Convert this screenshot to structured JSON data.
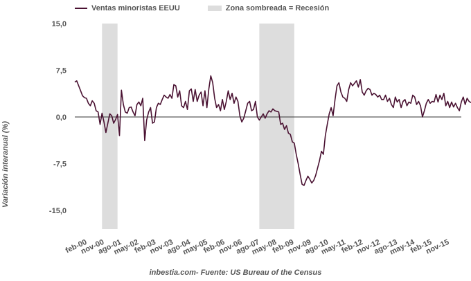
{
  "chart_data": {
    "type": "line",
    "title": "",
    "xlabel": "",
    "ylabel": "Variación interanual (%)",
    "ylim": [
      -18,
      15
    ],
    "yticks": [
      {
        "value": 15,
        "label": "15,0"
      },
      {
        "value": 7.5,
        "label": "7,5"
      },
      {
        "value": 0,
        "label": "0,0"
      },
      {
        "value": -7.5,
        "label": "-7,5"
      },
      {
        "value": -15,
        "label": "-15,0"
      }
    ],
    "xrange": [
      "2000-01",
      "2016-08"
    ],
    "xticks": [
      "feb-00",
      "nov-00",
      "ago-01",
      "may-02",
      "feb-03",
      "nov-03",
      "ago-04",
      "may-05",
      "feb-06",
      "nov-06",
      "ago-07",
      "may-08",
      "feb-09",
      "nov-09",
      "ago-10",
      "may-11",
      "feb-12",
      "nov-12",
      "ago-13",
      "may-14",
      "feb-15",
      "nov-15"
    ],
    "recessions": [
      {
        "start": "2001-03",
        "end": "2001-11"
      },
      {
        "start": "2007-12",
        "end": "2009-06"
      }
    ],
    "series": [
      {
        "name": "Ventas minoristas EEUU",
        "color": "#4a1232",
        "points": [
          [
            "2000-01",
            5.6
          ],
          [
            "2000-02",
            5.8
          ],
          [
            "2000-03",
            5.0
          ],
          [
            "2000-04",
            4.2
          ],
          [
            "2000-05",
            3.4
          ],
          [
            "2000-06",
            3.1
          ],
          [
            "2000-07",
            3.0
          ],
          [
            "2000-08",
            2.2
          ],
          [
            "2000-09",
            1.8
          ],
          [
            "2000-10",
            2.6
          ],
          [
            "2000-11",
            2.2
          ],
          [
            "2000-12",
            1.0
          ],
          [
            "2001-01",
            0.8
          ],
          [
            "2001-02",
            -1.2
          ],
          [
            "2001-03",
            0.6
          ],
          [
            "2001-04",
            -0.8
          ],
          [
            "2001-05",
            -2.5
          ],
          [
            "2001-06",
            -1.0
          ],
          [
            "2001-07",
            0.5
          ],
          [
            "2001-08",
            0.2
          ],
          [
            "2001-09",
            -1.0
          ],
          [
            "2001-10",
            -0.4
          ],
          [
            "2001-11",
            0.4
          ],
          [
            "2001-12",
            -3.0
          ],
          [
            "2002-01",
            4.3
          ],
          [
            "2002-02",
            2.0
          ],
          [
            "2002-03",
            0.8
          ],
          [
            "2002-04",
            0.6
          ],
          [
            "2002-05",
            1.5
          ],
          [
            "2002-06",
            1.6
          ],
          [
            "2002-07",
            0.8
          ],
          [
            "2002-08",
            0.2
          ],
          [
            "2002-09",
            2.0
          ],
          [
            "2002-10",
            2.4
          ],
          [
            "2002-11",
            1.8
          ],
          [
            "2002-12",
            3.0
          ],
          [
            "2003-01",
            -3.8
          ],
          [
            "2003-02",
            -0.5
          ],
          [
            "2003-03",
            0.8
          ],
          [
            "2003-04",
            1.5
          ],
          [
            "2003-05",
            -1.0
          ],
          [
            "2003-06",
            -0.8
          ],
          [
            "2003-07",
            1.5
          ],
          [
            "2003-08",
            2.2
          ],
          [
            "2003-09",
            2.0
          ],
          [
            "2003-10",
            2.8
          ],
          [
            "2003-11",
            3.5
          ],
          [
            "2003-12",
            3.2
          ],
          [
            "2004-01",
            3.0
          ],
          [
            "2004-02",
            3.6
          ],
          [
            "2004-03",
            3.0
          ],
          [
            "2004-04",
            5.2
          ],
          [
            "2004-05",
            5.0
          ],
          [
            "2004-06",
            3.2
          ],
          [
            "2004-07",
            4.2
          ],
          [
            "2004-08",
            1.8
          ],
          [
            "2004-09",
            1.5
          ],
          [
            "2004-10",
            2.5
          ],
          [
            "2004-11",
            1.2
          ],
          [
            "2004-12",
            4.2
          ],
          [
            "2005-01",
            4.5
          ],
          [
            "2005-02",
            2.5
          ],
          [
            "2005-03",
            4.4
          ],
          [
            "2005-04",
            2.5
          ],
          [
            "2005-05",
            3.5
          ],
          [
            "2005-06",
            4.0
          ],
          [
            "2005-07",
            1.8
          ],
          [
            "2005-08",
            4.2
          ],
          [
            "2005-09",
            1.5
          ],
          [
            "2005-10",
            4.5
          ],
          [
            "2005-11",
            6.6
          ],
          [
            "2005-12",
            5.5
          ],
          [
            "2006-01",
            3.0
          ],
          [
            "2006-02",
            1.5
          ],
          [
            "2006-03",
            2.0
          ],
          [
            "2006-04",
            1.0
          ],
          [
            "2006-05",
            2.8
          ],
          [
            "2006-06",
            1.2
          ],
          [
            "2006-07",
            2.5
          ],
          [
            "2006-08",
            4.2
          ],
          [
            "2006-09",
            2.8
          ],
          [
            "2006-10",
            3.8
          ],
          [
            "2006-11",
            2.2
          ],
          [
            "2006-12",
            3.2
          ],
          [
            "2007-01",
            2.5
          ],
          [
            "2007-02",
            0.2
          ],
          [
            "2007-03",
            -0.8
          ],
          [
            "2007-04",
            -0.2
          ],
          [
            "2007-05",
            1.0
          ],
          [
            "2007-06",
            2.2
          ],
          [
            "2007-07",
            2.5
          ],
          [
            "2007-08",
            1.0
          ],
          [
            "2007-09",
            1.2
          ],
          [
            "2007-10",
            2.5
          ],
          [
            "2007-11",
            0.0
          ],
          [
            "2007-12",
            -0.5
          ],
          [
            "2008-01",
            0.0
          ],
          [
            "2008-02",
            0.5
          ],
          [
            "2008-03",
            -0.2
          ],
          [
            "2008-04",
            0.5
          ],
          [
            "2008-05",
            1.0
          ],
          [
            "2008-06",
            0.8
          ],
          [
            "2008-07",
            1.3
          ],
          [
            "2008-08",
            1.0
          ],
          [
            "2008-09",
            0.9
          ],
          [
            "2008-10",
            0.8
          ],
          [
            "2008-11",
            -1.2
          ],
          [
            "2008-12",
            -1.0
          ],
          [
            "2009-01",
            -2.0
          ],
          [
            "2009-02",
            -1.4
          ],
          [
            "2009-03",
            -2.6
          ],
          [
            "2009-04",
            -2.8
          ],
          [
            "2009-05",
            -4.0
          ],
          [
            "2009-06",
            -4.2
          ],
          [
            "2009-07",
            -6.0
          ],
          [
            "2009-08",
            -7.5
          ],
          [
            "2009-09",
            -9.2
          ],
          [
            "2009-10",
            -10.8
          ],
          [
            "2009-11",
            -11.0
          ],
          [
            "2009-12",
            -10.2
          ],
          [
            "2010-01",
            -9.5
          ],
          [
            "2010-02",
            -10.0
          ],
          [
            "2010-03",
            -10.6
          ],
          [
            "2010-04",
            -10.2
          ],
          [
            "2010-05",
            -9.4
          ],
          [
            "2010-06",
            -8.2
          ],
          [
            "2010-07",
            -7.0
          ],
          [
            "2010-08",
            -5.5
          ],
          [
            "2010-09",
            -6.0
          ],
          [
            "2010-10",
            -3.0
          ],
          [
            "2010-11",
            -1.2
          ],
          [
            "2010-12",
            0.5
          ],
          [
            "2011-01",
            1.5
          ],
          [
            "2011-02",
            0.2
          ],
          [
            "2011-03",
            2.8
          ],
          [
            "2011-04",
            5.0
          ],
          [
            "2011-05",
            5.5
          ],
          [
            "2011-06",
            4.0
          ],
          [
            "2011-07",
            3.2
          ],
          [
            "2011-08",
            3.0
          ],
          [
            "2011-09",
            2.5
          ],
          [
            "2011-10",
            4.4
          ],
          [
            "2011-11",
            5.5
          ],
          [
            "2011-12",
            5.0
          ],
          [
            "2012-01",
            5.4
          ],
          [
            "2012-02",
            5.8
          ],
          [
            "2012-03",
            4.8
          ],
          [
            "2012-04",
            6.0
          ],
          [
            "2012-05",
            4.0
          ],
          [
            "2012-06",
            3.5
          ],
          [
            "2012-07",
            4.2
          ],
          [
            "2012-08",
            4.6
          ],
          [
            "2012-09",
            4.4
          ],
          [
            "2012-10",
            3.5
          ],
          [
            "2012-11",
            3.8
          ],
          [
            "2012-12",
            3.6
          ],
          [
            "2013-01",
            3.2
          ],
          [
            "2013-02",
            3.5
          ],
          [
            "2013-03",
            2.8
          ],
          [
            "2013-04",
            2.8
          ],
          [
            "2013-05",
            3.5
          ],
          [
            "2013-06",
            2.5
          ],
          [
            "2013-07",
            3.0
          ],
          [
            "2013-08",
            2.0
          ],
          [
            "2013-09",
            1.5
          ],
          [
            "2013-10",
            3.2
          ],
          [
            "2013-11",
            2.4
          ],
          [
            "2013-12",
            2.8
          ],
          [
            "2014-01",
            1.5
          ],
          [
            "2014-02",
            2.5
          ],
          [
            "2014-03",
            2.8
          ],
          [
            "2014-04",
            1.8
          ],
          [
            "2014-05",
            2.4
          ],
          [
            "2014-06",
            2.2
          ],
          [
            "2014-07",
            3.5
          ],
          [
            "2014-08",
            3.2
          ],
          [
            "2014-09",
            2.0
          ],
          [
            "2014-10",
            2.5
          ],
          [
            "2014-11",
            1.8
          ],
          [
            "2014-12",
            0.0
          ],
          [
            "2015-01",
            1.0
          ],
          [
            "2015-02",
            2.2
          ],
          [
            "2015-03",
            2.8
          ],
          [
            "2015-04",
            2.2
          ],
          [
            "2015-05",
            2.5
          ],
          [
            "2015-06",
            2.4
          ],
          [
            "2015-07",
            3.6
          ],
          [
            "2015-08",
            2.4
          ],
          [
            "2015-09",
            3.5
          ],
          [
            "2015-10",
            2.8
          ],
          [
            "2015-11",
            3.8
          ],
          [
            "2015-12",
            1.8
          ],
          [
            "2016-01",
            2.5
          ],
          [
            "2016-02",
            1.5
          ],
          [
            "2016-03",
            2.4
          ],
          [
            "2016-04",
            1.6
          ],
          [
            "2016-05",
            2.2
          ],
          [
            "2016-06",
            1.5
          ],
          [
            "2016-07",
            1.0
          ],
          [
            "2016-08",
            2.4
          ],
          [
            "2016-09",
            3.2
          ],
          [
            "2016-10",
            2.0
          ],
          [
            "2016-11",
            3.0
          ],
          [
            "2016-12",
            2.5
          ],
          [
            "2017-01",
            2.3
          ]
        ]
      }
    ],
    "legend": {
      "placement": "top-left",
      "entries": [
        {
          "label": "Ventas minoristas EEUU",
          "kind": "line",
          "color": "#4a1232"
        },
        {
          "label": "Zona sombreada = Recesión",
          "kind": "box",
          "color": "#dddddd"
        }
      ]
    },
    "source": "inbestia.com- Fuente: US Bureau of the Census"
  }
}
